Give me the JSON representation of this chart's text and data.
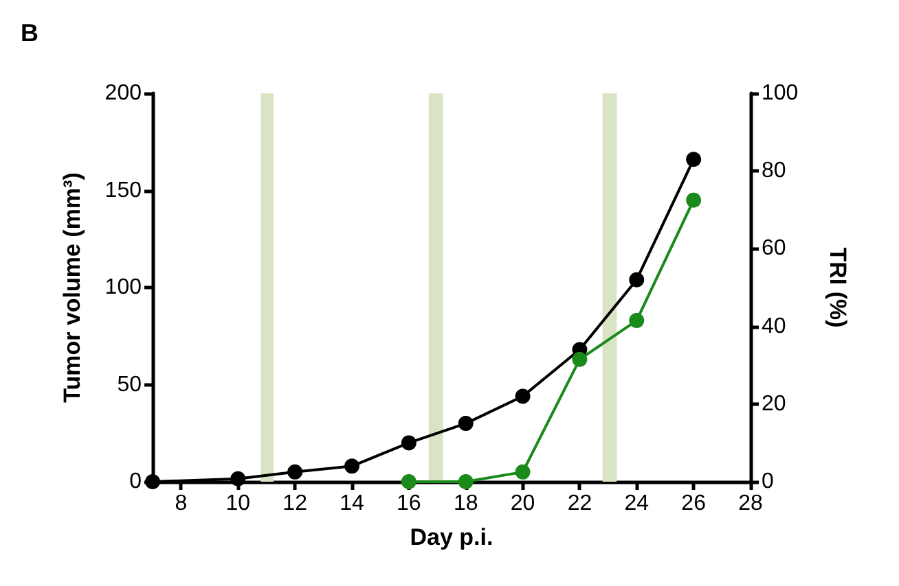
{
  "chart_data": {
    "type": "line",
    "title": "B",
    "xlabel": "Day p.i.",
    "ylabel": "Tumor volume (mm³)",
    "y2label": "TRI (%)",
    "xlim": [
      7,
      28
    ],
    "xticks": [
      8,
      10,
      12,
      14,
      16,
      18,
      20,
      22,
      24,
      26,
      28
    ],
    "ylim": [
      0,
      200
    ],
    "yticks": [
      0,
      50,
      100,
      150,
      200
    ],
    "y2lim": [
      0,
      100
    ],
    "y2ticks": [
      0,
      20,
      40,
      60,
      80,
      100
    ],
    "series": [
      {
        "color": "#000000",
        "x": [
          7,
          10,
          12,
          14,
          16,
          18,
          20,
          22,
          24,
          26
        ],
        "values": [
          0,
          1.5,
          5,
          8,
          20,
          30,
          44,
          68,
          104,
          166
        ]
      },
      {
        "color": "#1a8a1a",
        "axis": "y2",
        "x": [
          16,
          18,
          20,
          22,
          24,
          26
        ],
        "values": [
          0,
          0,
          2.5,
          31.5,
          41.5,
          72.5
        ]
      }
    ],
    "bands": [
      {
        "axis": "x",
        "from": 10.8,
        "to": 11.25,
        "color": "#d9e4c4"
      },
      {
        "axis": "x",
        "from": 16.7,
        "to": 17.2,
        "color": "#d9e4c4"
      },
      {
        "axis": "x",
        "from": 22.8,
        "to": 23.3,
        "color": "#d9e4c4"
      }
    ],
    "marker": "circle",
    "line_style": "solid"
  }
}
